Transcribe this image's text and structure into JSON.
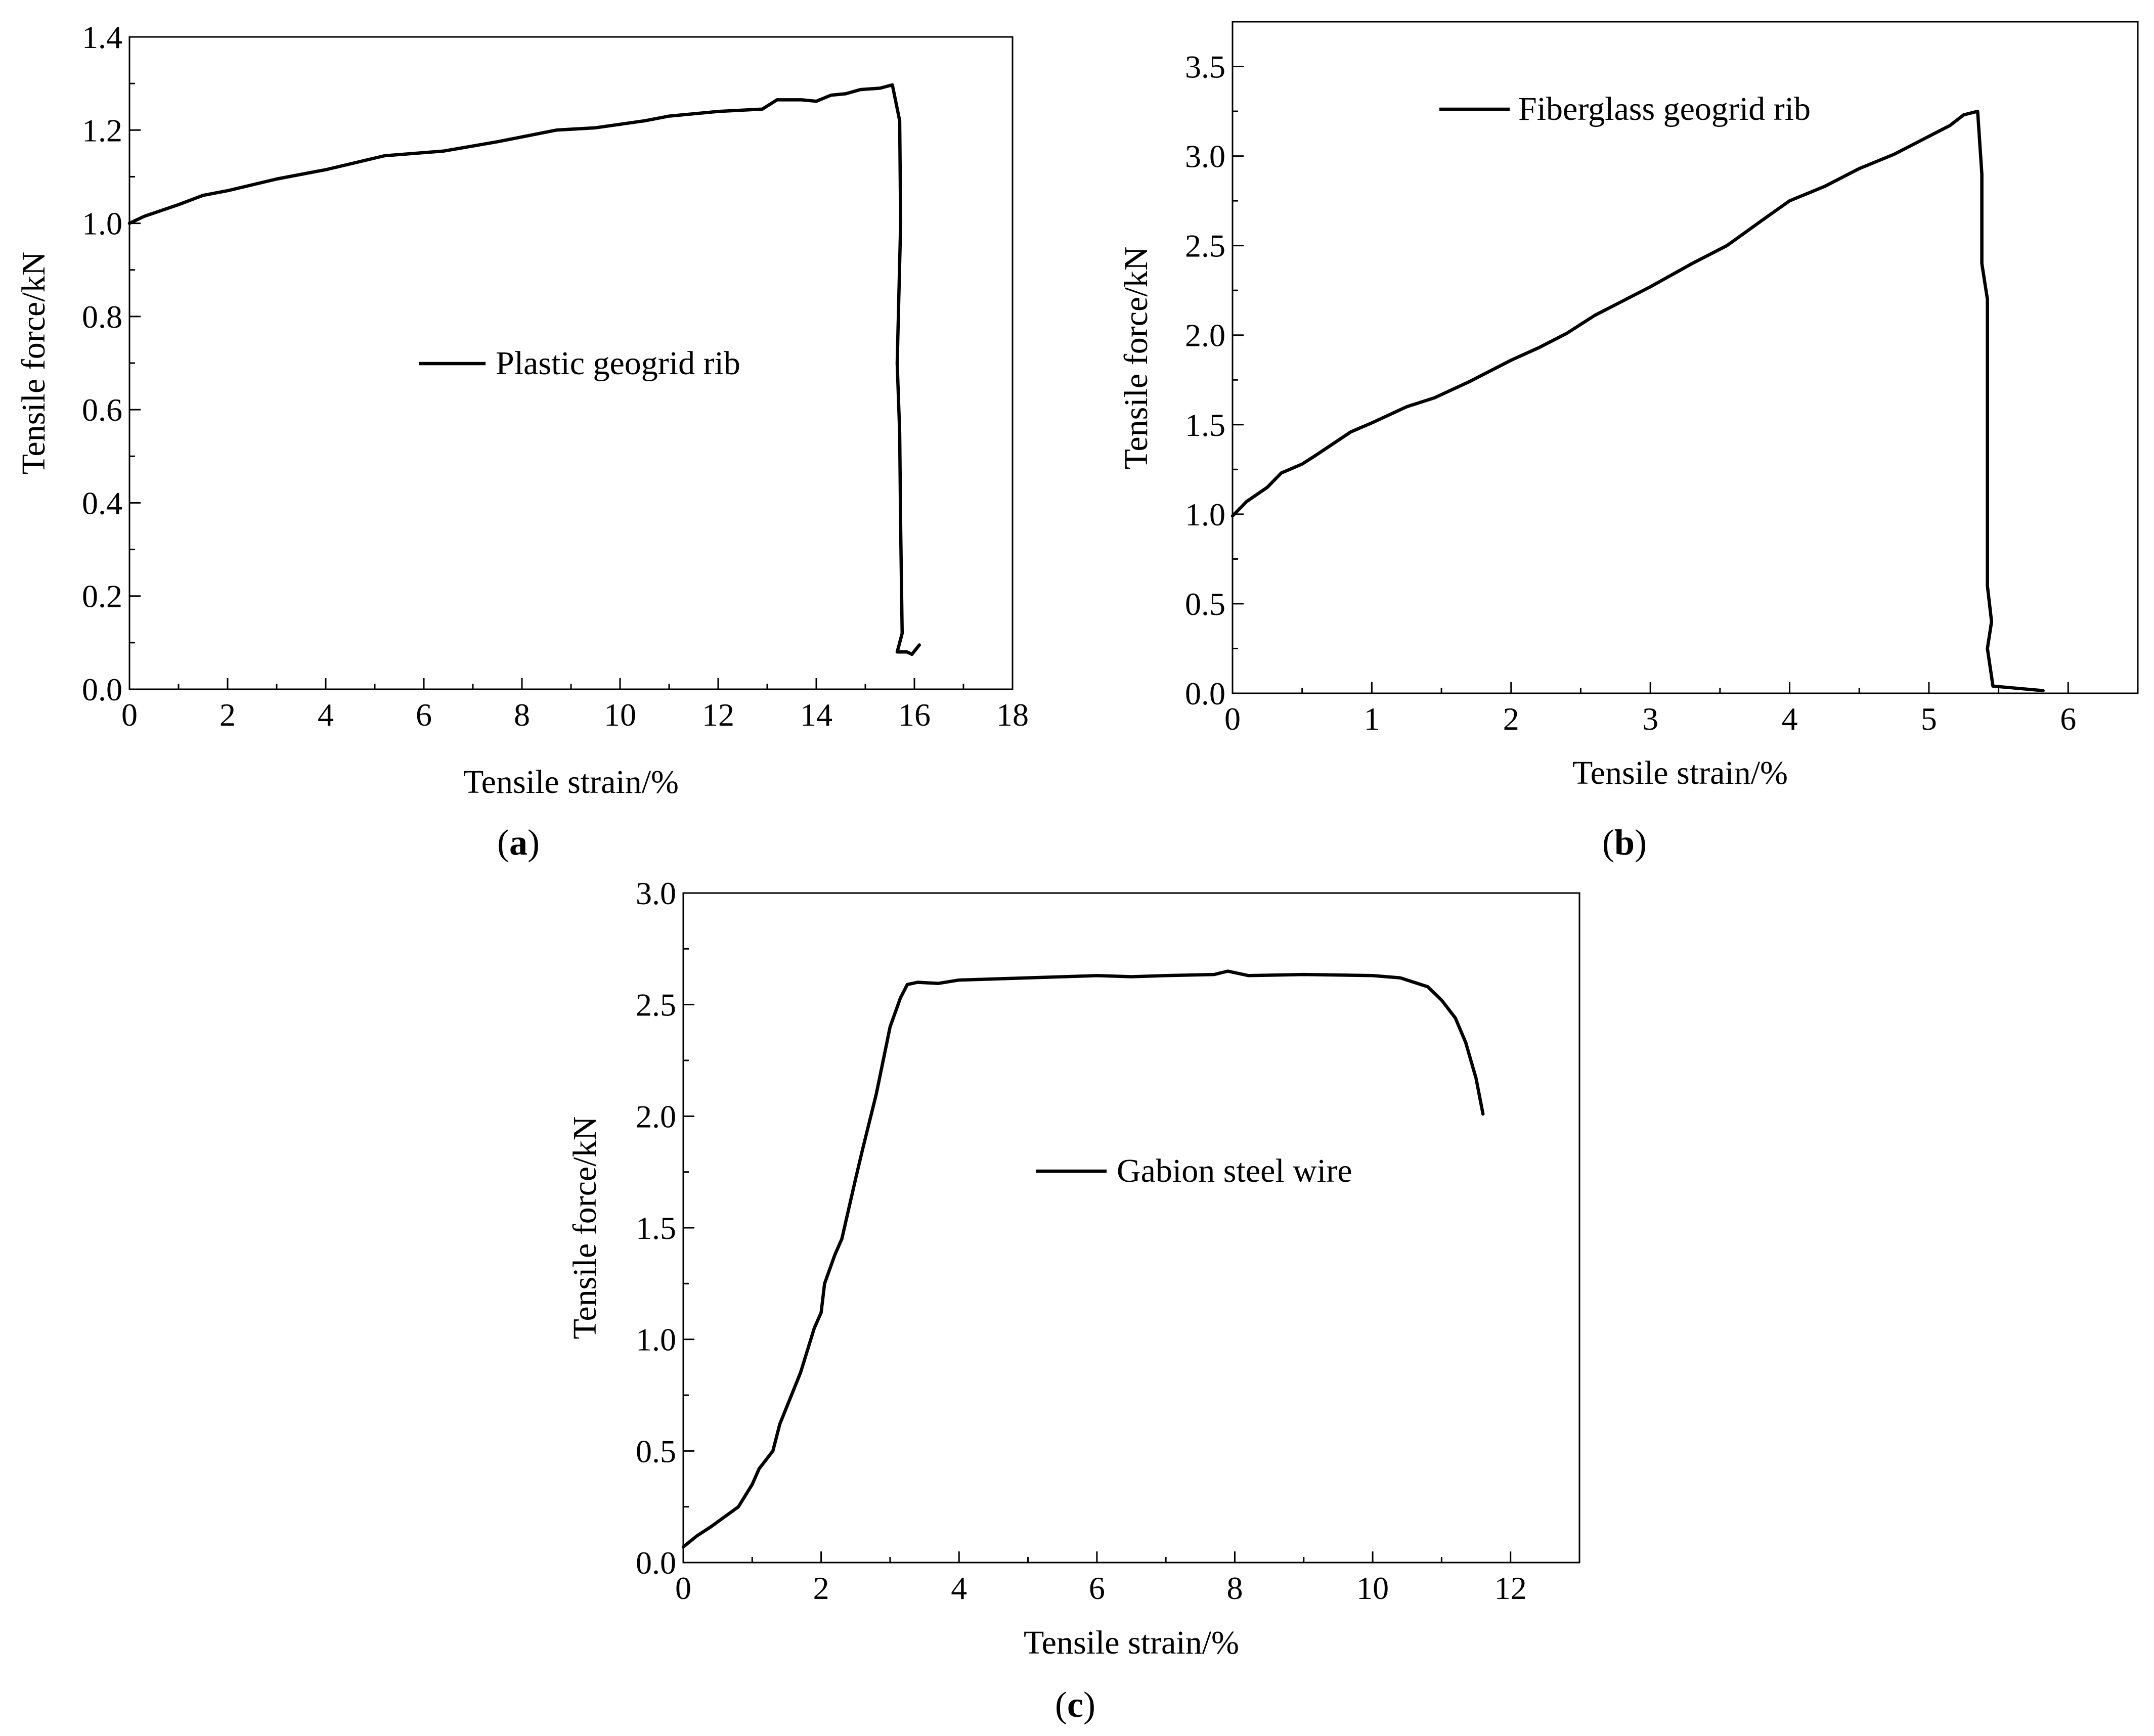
{
  "chart_data": [
    {
      "panel": "a",
      "type": "line",
      "xlabel": "Tensile strain/%",
      "ylabel": "Tensile force/kN",
      "xlim": [
        0,
        18
      ],
      "ylim": [
        0,
        1.4
      ],
      "xticks": [
        0,
        2,
        4,
        6,
        8,
        10,
        12,
        14,
        16,
        18
      ],
      "yticks": [
        0.0,
        0.2,
        0.4,
        0.6,
        0.8,
        1.0,
        1.2,
        1.4
      ],
      "xtick_labels": [
        "0",
        "2",
        "4",
        "6",
        "8",
        "10",
        "12",
        "14",
        "16",
        "18"
      ],
      "ytick_labels": [
        "0.0",
        "0.2",
        "0.4",
        "0.6",
        "0.8",
        "1.0",
        "1.2",
        "1.4"
      ],
      "legend_position": "center",
      "grid": false,
      "series": [
        {
          "name": "Plastic geogrid rib",
          "points": [
            [
              0,
              1.0
            ],
            [
              0.3,
              1.015
            ],
            [
              1.0,
              1.04
            ],
            [
              1.5,
              1.06
            ],
            [
              2.0,
              1.07
            ],
            [
              3.0,
              1.095
            ],
            [
              4.0,
              1.115
            ],
            [
              5.2,
              1.145
            ],
            [
              6.4,
              1.155
            ],
            [
              7.5,
              1.175
            ],
            [
              8.7,
              1.2
            ],
            [
              9.5,
              1.205
            ],
            [
              10.5,
              1.22
            ],
            [
              11.0,
              1.23
            ],
            [
              12.0,
              1.24
            ],
            [
              12.9,
              1.245
            ],
            [
              13.2,
              1.265
            ],
            [
              13.7,
              1.265
            ],
            [
              14.0,
              1.262
            ],
            [
              14.3,
              1.275
            ],
            [
              14.6,
              1.278
            ],
            [
              14.9,
              1.287
            ],
            [
              15.3,
              1.29
            ],
            [
              15.55,
              1.297
            ],
            [
              15.7,
              1.22
            ],
            [
              15.72,
              1.0
            ],
            [
              15.65,
              0.7
            ],
            [
              15.7,
              0.55
            ],
            [
              15.72,
              0.35
            ],
            [
              15.75,
              0.12
            ],
            [
              15.65,
              0.08
            ],
            [
              15.85,
              0.08
            ],
            [
              15.95,
              0.075
            ],
            [
              16.1,
              0.095
            ]
          ]
        }
      ]
    },
    {
      "panel": "b",
      "type": "line",
      "xlabel": "Tensile strain/%",
      "ylabel": "Tensile force/kN",
      "xlim": [
        0,
        6.5
      ],
      "ylim": [
        0,
        3.75
      ],
      "xticks": [
        0,
        1,
        2,
        3,
        4,
        5,
        6
      ],
      "yticks": [
        0.0,
        0.5,
        1.0,
        1.5,
        2.0,
        2.5,
        3.0,
        3.5
      ],
      "xtick_labels": [
        "0",
        "1",
        "2",
        "3",
        "4",
        "5",
        "6"
      ],
      "ytick_labels": [
        "0.0",
        "0.5",
        "1.0",
        "1.5",
        "2.0",
        "2.5",
        "3.0",
        "3.5"
      ],
      "legend_position": "top-left",
      "grid": false,
      "series": [
        {
          "name": "Fiberglass geogrid rib",
          "points": [
            [
              0,
              0.99
            ],
            [
              0.1,
              1.07
            ],
            [
              0.25,
              1.15
            ],
            [
              0.35,
              1.23
            ],
            [
              0.5,
              1.28
            ],
            [
              0.6,
              1.33
            ],
            [
              0.85,
              1.46
            ],
            [
              1.0,
              1.51
            ],
            [
              1.25,
              1.6
            ],
            [
              1.45,
              1.65
            ],
            [
              1.7,
              1.74
            ],
            [
              2.0,
              1.86
            ],
            [
              2.2,
              1.93
            ],
            [
              2.4,
              2.01
            ],
            [
              2.6,
              2.11
            ],
            [
              3.0,
              2.27
            ],
            [
              3.3,
              2.4
            ],
            [
              3.55,
              2.5
            ],
            [
              3.8,
              2.64
            ],
            [
              4.0,
              2.75
            ],
            [
              4.25,
              2.83
            ],
            [
              4.5,
              2.93
            ],
            [
              4.75,
              3.01
            ],
            [
              5.0,
              3.11
            ],
            [
              5.15,
              3.17
            ],
            [
              5.25,
              3.23
            ],
            [
              5.35,
              3.25
            ],
            [
              5.38,
              2.9
            ],
            [
              5.38,
              2.4
            ],
            [
              5.42,
              2.2
            ],
            [
              5.42,
              1.5
            ],
            [
              5.42,
              0.6
            ],
            [
              5.45,
              0.4
            ],
            [
              5.42,
              0.25
            ],
            [
              5.46,
              0.04
            ],
            [
              5.82,
              0.015
            ]
          ]
        }
      ]
    },
    {
      "panel": "c",
      "type": "line",
      "xlabel": "Tensile strain/%",
      "ylabel": "Tensile force/kN",
      "xlim": [
        0,
        13
      ],
      "ylim": [
        0,
        3.0
      ],
      "xticks": [
        0,
        2,
        4,
        6,
        8,
        10,
        12
      ],
      "yticks": [
        0.0,
        0.5,
        1.0,
        1.5,
        2.0,
        2.5,
        3.0
      ],
      "xtick_labels": [
        "0",
        "2",
        "4",
        "6",
        "8",
        "10",
        "12"
      ],
      "ytick_labels": [
        "0.0",
        "0.5",
        "1.0",
        "1.5",
        "2.0",
        "2.5",
        "3.0"
      ],
      "legend_position": "center",
      "grid": false,
      "series": [
        {
          "name": "Gabion steel wire",
          "points": [
            [
              0,
              0.07
            ],
            [
              0.2,
              0.12
            ],
            [
              0.4,
              0.16
            ],
            [
              0.8,
              0.25
            ],
            [
              1.0,
              0.35
            ],
            [
              1.1,
              0.42
            ],
            [
              1.3,
              0.5
            ],
            [
              1.4,
              0.62
            ],
            [
              1.7,
              0.85
            ],
            [
              1.9,
              1.05
            ],
            [
              2.0,
              1.12
            ],
            [
              2.05,
              1.25
            ],
            [
              2.2,
              1.38
            ],
            [
              2.3,
              1.45
            ],
            [
              2.5,
              1.72
            ],
            [
              2.6,
              1.85
            ],
            [
              2.8,
              2.1
            ],
            [
              3.0,
              2.4
            ],
            [
              3.15,
              2.53
            ],
            [
              3.25,
              2.59
            ],
            [
              3.4,
              2.6
            ],
            [
              3.7,
              2.595
            ],
            [
              4.0,
              2.61
            ],
            [
              5.0,
              2.62
            ],
            [
              6.0,
              2.63
            ],
            [
              6.5,
              2.625
            ],
            [
              7.0,
              2.63
            ],
            [
              7.7,
              2.635
            ],
            [
              7.9,
              2.65
            ],
            [
              8.2,
              2.63
            ],
            [
              9.0,
              2.635
            ],
            [
              10.0,
              2.63
            ],
            [
              10.4,
              2.62
            ],
            [
              10.8,
              2.58
            ],
            [
              11.0,
              2.52
            ],
            [
              11.2,
              2.44
            ],
            [
              11.35,
              2.33
            ],
            [
              11.5,
              2.17
            ],
            [
              11.6,
              2.01
            ]
          ]
        }
      ]
    }
  ],
  "panel_labels": {
    "a": {
      "open": "(",
      "letter": "a",
      "close": ")"
    },
    "b": {
      "open": "(",
      "letter": "b",
      "close": ")"
    },
    "c": {
      "open": "(",
      "letter": "c",
      "close": ")"
    }
  }
}
